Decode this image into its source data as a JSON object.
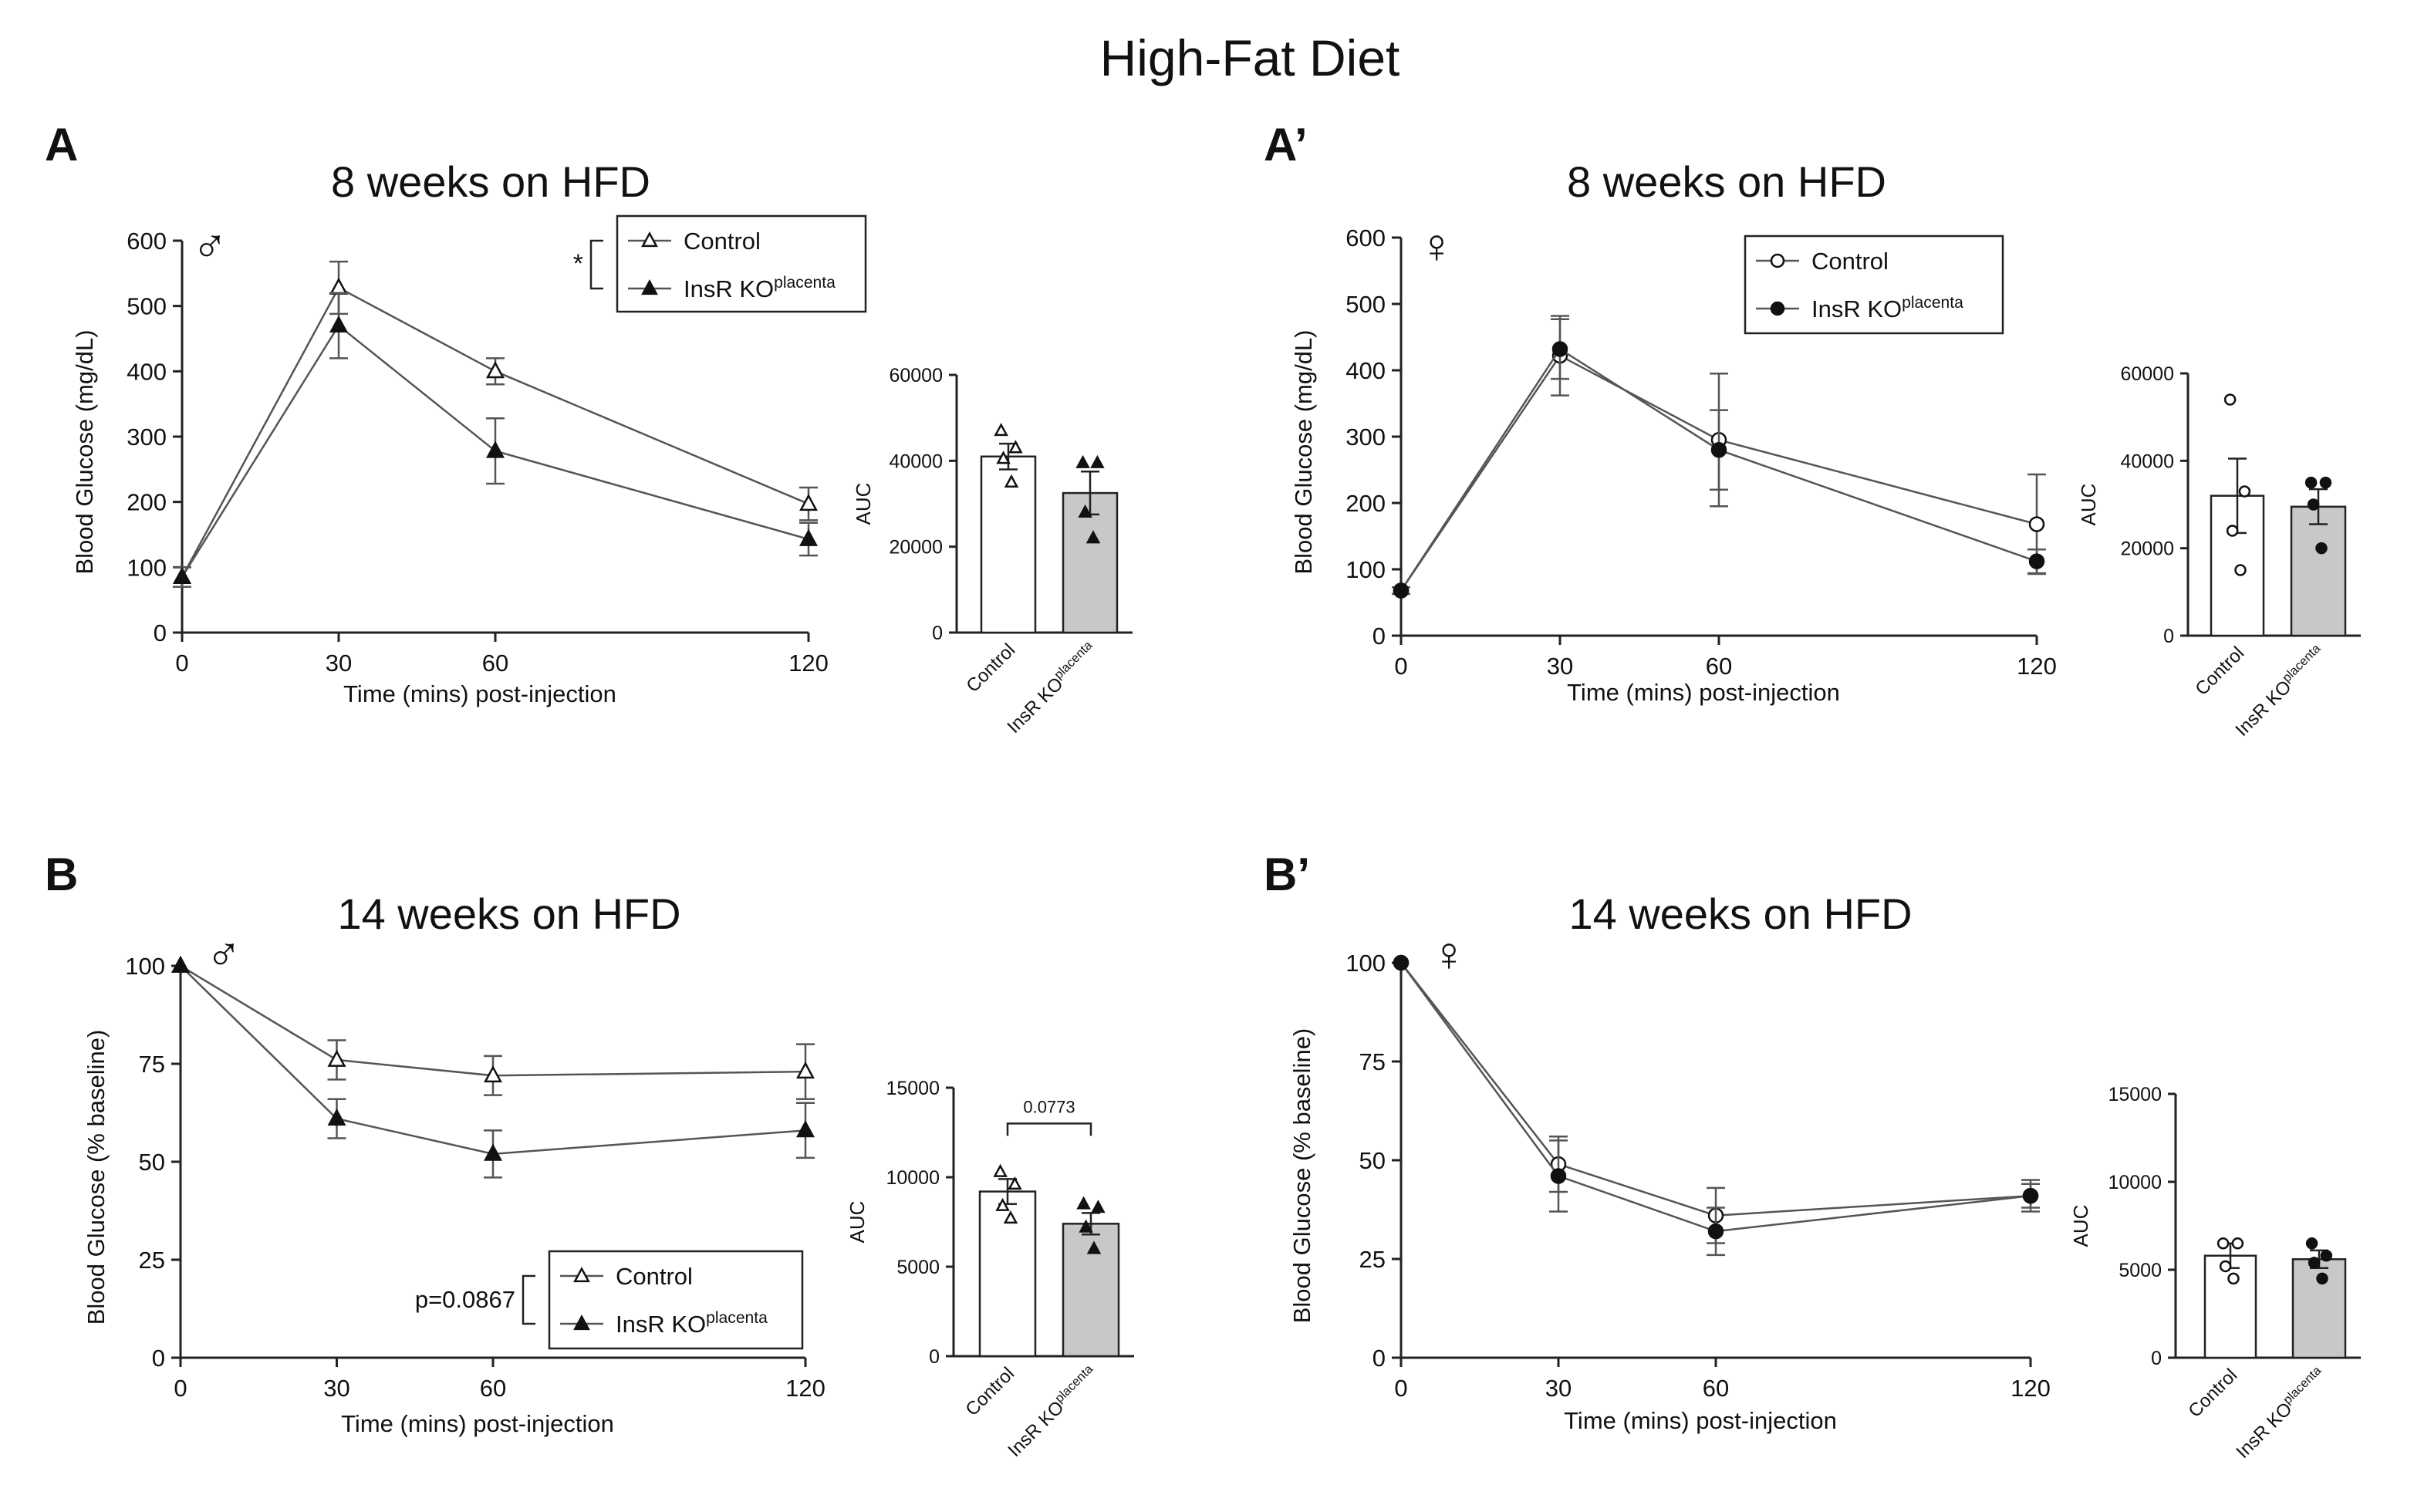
{
  "figure_title": "High-Fat Diet",
  "colors": {
    "axis": "#222222",
    "line": "#555555",
    "control_fill": "#ffffff",
    "ko_fill": "#111111",
    "bar_control": "#ffffff",
    "bar_ko": "#c8c8c8"
  },
  "chart_data": [
    {
      "id": "A",
      "panel_label": "A",
      "title": "8 weeks on HFD",
      "sex_symbol": "♂",
      "type": "line",
      "xlabel": "Time (mins) post-injection",
      "ylabel": "Blood Glucose (mg/dL)",
      "x": [
        0,
        30,
        60,
        120
      ],
      "xticks": [
        "0",
        "30",
        "60",
        "120"
      ],
      "xlim": [
        0,
        120
      ],
      "ylim": [
        0,
        600
      ],
      "yticks": [
        "0",
        "100",
        "200",
        "300",
        "400",
        "500",
        "600"
      ],
      "marker": "triangle",
      "series": [
        {
          "name": "Control",
          "superscript": "",
          "values": [
            85,
            528,
            400,
            197
          ],
          "errors": [
            15,
            40,
            20,
            25
          ]
        },
        {
          "name": "InsR KO",
          "superscript": "placenta",
          "values": [
            85,
            470,
            278,
            143
          ],
          "errors": [
            15,
            50,
            50,
            25
          ]
        }
      ],
      "legend": {
        "position": "top-center",
        "annotation": "*"
      },
      "auc": {
        "ylabel": "AUC",
        "ylim": [
          0,
          60000
        ],
        "yticks": [
          "0",
          "20000",
          "40000",
          "60000"
        ],
        "categories": [
          {
            "label": "Control",
            "superscript": ""
          },
          {
            "label": "InsR KO",
            "superscript": "placenta"
          }
        ],
        "values": [
          41000,
          32500
        ],
        "errors": [
          3000,
          5000
        ],
        "points": [
          [
            47000,
            43000,
            40500,
            35000
          ],
          [
            39500,
            39500,
            28000,
            22000
          ]
        ],
        "comparison": ""
      }
    },
    {
      "id": "A2",
      "panel_label": "A’",
      "title": "8 weeks on HFD",
      "sex_symbol": "♀",
      "type": "line",
      "xlabel": "Time (mins) post-injection",
      "ylabel": "Blood Glucose (mg/dL)",
      "x": [
        0,
        30,
        60,
        120
      ],
      "xticks": [
        "0",
        "30",
        "60",
        "120"
      ],
      "xlim": [
        0,
        120
      ],
      "ylim": [
        0,
        600
      ],
      "yticks": [
        "0",
        "100",
        "200",
        "300",
        "400",
        "500",
        "600"
      ],
      "marker": "circle",
      "series": [
        {
          "name": "Control",
          "superscript": "",
          "values": [
            68,
            422,
            295,
            168
          ],
          "errors": [
            5,
            60,
            100,
            75
          ]
        },
        {
          "name": "InsR KO",
          "superscript": "placenta",
          "values": [
            68,
            432,
            280,
            112
          ],
          "errors": [
            5,
            45,
            60,
            18
          ]
        }
      ],
      "legend": {
        "position": "top-center",
        "annotation": ""
      },
      "auc": {
        "ylabel": "AUC",
        "ylim": [
          0,
          60000
        ],
        "yticks": [
          "0",
          "20000",
          "40000",
          "60000"
        ],
        "categories": [
          {
            "label": "Control",
            "superscript": ""
          },
          {
            "label": "InsR KO",
            "superscript": "placenta"
          }
        ],
        "values": [
          32000,
          29500
        ],
        "errors": [
          8500,
          4000
        ],
        "points": [
          [
            54000,
            33000,
            24000,
            15000
          ],
          [
            35000,
            35000,
            30000,
            20000
          ]
        ],
        "comparison": ""
      }
    },
    {
      "id": "B",
      "panel_label": "B",
      "title": "14 weeks on HFD",
      "sex_symbol": "♂",
      "type": "line",
      "xlabel": "Time (mins) post-injection",
      "ylabel": "Blood Glucose (% baseline)",
      "x": [
        0,
        30,
        60,
        120
      ],
      "xticks": [
        "0",
        "30",
        "60",
        "120"
      ],
      "xlim": [
        0,
        120
      ],
      "ylim": [
        0,
        100
      ],
      "yticks": [
        "0",
        "25",
        "50",
        "75",
        "100"
      ],
      "marker": "triangle",
      "series": [
        {
          "name": "Control",
          "superscript": "",
          "values": [
            100,
            76,
            72,
            73
          ],
          "errors": [
            0,
            5,
            5,
            7
          ]
        },
        {
          "name": "InsR KO",
          "superscript": "placenta",
          "values": [
            100,
            61,
            52,
            58
          ],
          "errors": [
            0,
            5,
            6,
            7
          ]
        }
      ],
      "legend": {
        "position": "bottom-center",
        "annotation": "p=0.0867"
      },
      "auc": {
        "ylabel": "AUC",
        "ylim": [
          0,
          15000
        ],
        "yticks": [
          "0",
          "5000",
          "10000",
          "15000"
        ],
        "categories": [
          {
            "label": "Control",
            "superscript": ""
          },
          {
            "label": "InsR KO",
            "superscript": "placenta"
          }
        ],
        "values": [
          9200,
          7400
        ],
        "errors": [
          700,
          600
        ],
        "points": [
          [
            10300,
            9600,
            8400,
            7700
          ],
          [
            8500,
            8300,
            7200,
            6000
          ]
        ],
        "comparison": "0.0773"
      }
    },
    {
      "id": "B2",
      "panel_label": "B’",
      "title": "14 weeks on HFD",
      "sex_symbol": "♀",
      "type": "line",
      "xlabel": "Time (mins) post-injection",
      "ylabel": "Blood Glucose (% baseline)",
      "x": [
        0,
        30,
        60,
        120
      ],
      "xticks": [
        "0",
        "30",
        "60",
        "120"
      ],
      "xlim": [
        0,
        120
      ],
      "ylim": [
        0,
        100
      ],
      "yticks": [
        "0",
        "25",
        "50",
        "75",
        "100"
      ],
      "marker": "circle",
      "series": [
        {
          "name": "Control",
          "superscript": "",
          "values": [
            100,
            49,
            36,
            41
          ],
          "errors": [
            0,
            7,
            7,
            4
          ]
        },
        {
          "name": "InsR KO",
          "superscript": "placenta",
          "values": [
            100,
            46,
            32,
            41
          ],
          "errors": [
            0,
            9,
            6,
            3
          ]
        }
      ],
      "legend": null,
      "auc": {
        "ylabel": "AUC",
        "ylim": [
          0,
          15000
        ],
        "yticks": [
          "0",
          "5000",
          "10000",
          "15000"
        ],
        "categories": [
          {
            "label": "Control",
            "superscript": ""
          },
          {
            "label": "InsR KO",
            "superscript": "placenta"
          }
        ],
        "values": [
          5800,
          5600
        ],
        "errors": [
          700,
          500
        ],
        "points": [
          [
            6500,
            6500,
            5200,
            4500
          ],
          [
            6500,
            5800,
            5400,
            4500
          ]
        ],
        "comparison": ""
      }
    }
  ]
}
